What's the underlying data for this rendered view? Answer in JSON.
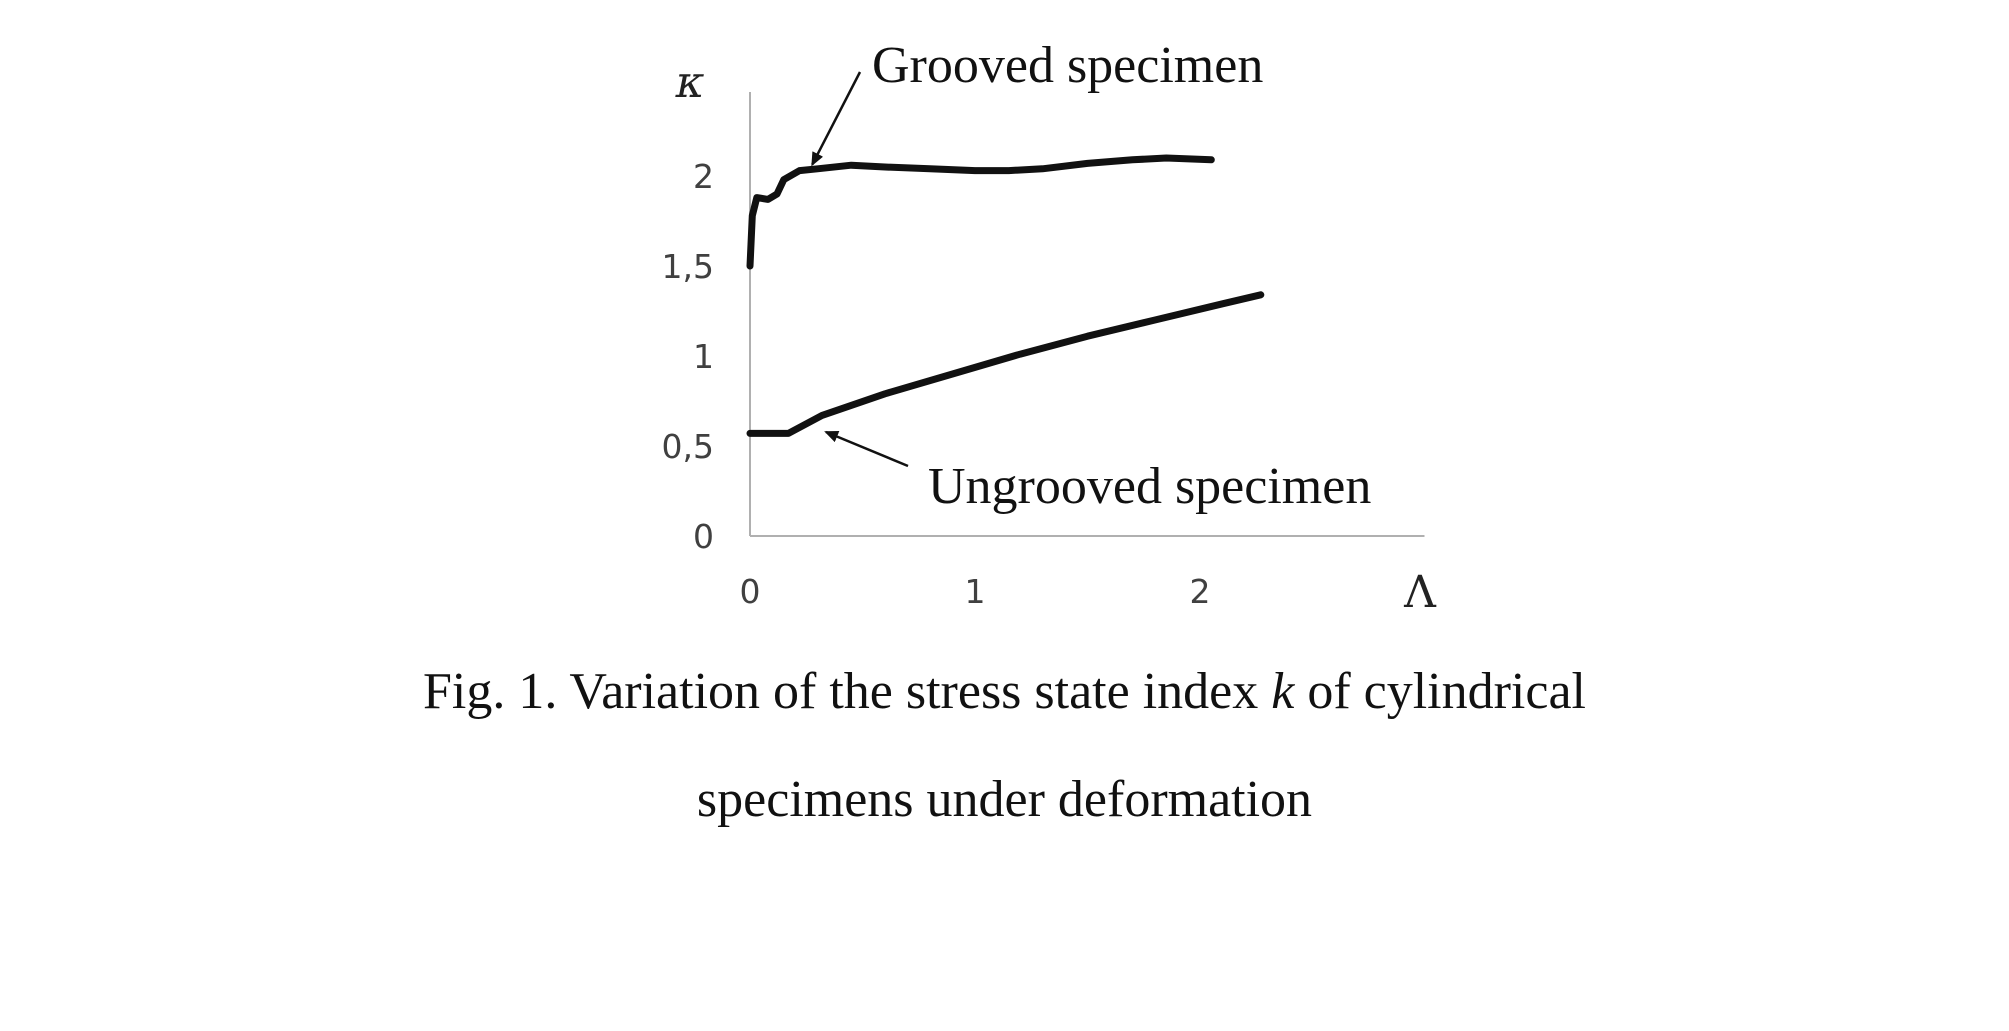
{
  "chart_data": {
    "type": "line",
    "xlabel": "Λ",
    "ylabel": "κ",
    "xlim": [
      0,
      3
    ],
    "ylim": [
      0,
      2.5
    ],
    "x_ticks": [
      "0",
      "1",
      "2"
    ],
    "y_ticks": [
      "0",
      "0,5",
      "1",
      "1,5",
      "2"
    ],
    "grid": false,
    "series": [
      {
        "name": "Grooved specimen",
        "points": [
          [
            0.0,
            1.5
          ],
          [
            0.01,
            1.78
          ],
          [
            0.03,
            1.88
          ],
          [
            0.08,
            1.87
          ],
          [
            0.12,
            1.9
          ],
          [
            0.15,
            1.98
          ],
          [
            0.22,
            2.03
          ],
          [
            0.3,
            2.04
          ],
          [
            0.45,
            2.06
          ],
          [
            0.6,
            2.05
          ],
          [
            0.8,
            2.04
          ],
          [
            1.0,
            2.03
          ],
          [
            1.15,
            2.03
          ],
          [
            1.3,
            2.04
          ],
          [
            1.5,
            2.07
          ],
          [
            1.7,
            2.09
          ],
          [
            1.85,
            2.1
          ],
          [
            2.05,
            2.09
          ]
        ]
      },
      {
        "name": "Ungrooved specimen",
        "points": [
          [
            0.0,
            0.57
          ],
          [
            0.17,
            0.57
          ],
          [
            0.32,
            0.67
          ],
          [
            0.6,
            0.79
          ],
          [
            0.9,
            0.9
          ],
          [
            1.2,
            1.01
          ],
          [
            1.5,
            1.11
          ],
          [
            1.8,
            1.2
          ],
          [
            2.1,
            1.29
          ],
          [
            2.27,
            1.34
          ]
        ]
      }
    ],
    "annotations": [
      {
        "text": "Grooved specimen",
        "series": 0,
        "arrow_to": [
          0.25,
          2.03
        ]
      },
      {
        "text": "Ungrooved specimen",
        "series": 1,
        "arrow_to": [
          0.32,
          0.6
        ]
      }
    ]
  },
  "caption": {
    "line1_before": "Fig. 1. Variation of the stress state index ",
    "line1_italic": "k",
    "line1_after": " of cylindrical",
    "line2": "specimens under deformation"
  },
  "colors": {
    "series": "#111111",
    "axis": "#b0b0b0",
    "tick_text": "#404040"
  }
}
